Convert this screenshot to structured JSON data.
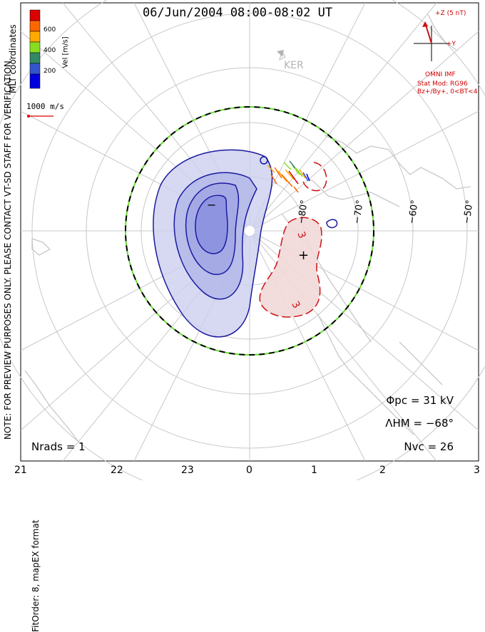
{
  "header": {
    "title": "06/Jun/2004 08:00-08:02 UT"
  },
  "side_notes": {
    "preview_note": "NOTE: FOR PREVIEW PURPOSES ONLY. PLEASE CONTACT VT-SD STAFF FOR VERIFICATION.",
    "fit_note": "FitOrder: 8, mapEX format",
    "coords": "MLT coordinates"
  },
  "colorbar": {
    "label": "Vel [m/s]",
    "ticks": [
      "600",
      "400",
      "200"
    ],
    "colors": [
      "#dd0000",
      "#ff6600",
      "#ffaa00",
      "#88dd22",
      "#338866",
      "#3355cc",
      "#0000dd"
    ]
  },
  "reference_vector": {
    "label": "1000 m/s"
  },
  "station": {
    "label": "KER"
  },
  "imf": {
    "z_label": "+Z (5 nT)",
    "y_label": "+Y",
    "source": "OMNI IMF",
    "stat_model": "Stat Mod: RG96",
    "model_params": "Bz+/By+, 0<BT<4"
  },
  "stats": {
    "phi_pc_label": "Φpc",
    "phi_pc_value": "=  31  kV",
    "lambda_hm_label": "ΛHM",
    "lambda_hm_value": "=  −68°",
    "n_vc_label": "Nvc",
    "n_vc_value": "=  26",
    "n_rads_label": "Nrads",
    "n_rads_value": "=  1"
  },
  "mlt_labels": [
    "21",
    "22",
    "23",
    "0",
    "1",
    "2",
    "3"
  ],
  "lat_labels": [
    "−80°",
    "−70°",
    "−60°",
    "−50°"
  ],
  "contour_labels": {
    "positive": "3",
    "positive_2": "3",
    "minus_sign": "−",
    "plus_sign": "+"
  },
  "colors": {
    "negative_cell": "#1a1aa0",
    "positive_cell": "#cc1111",
    "coast": "#c8c8c8",
    "grid": "#c8c8c8",
    "hmb": "#000000",
    "hmb_alt": "#66dd33"
  }
}
